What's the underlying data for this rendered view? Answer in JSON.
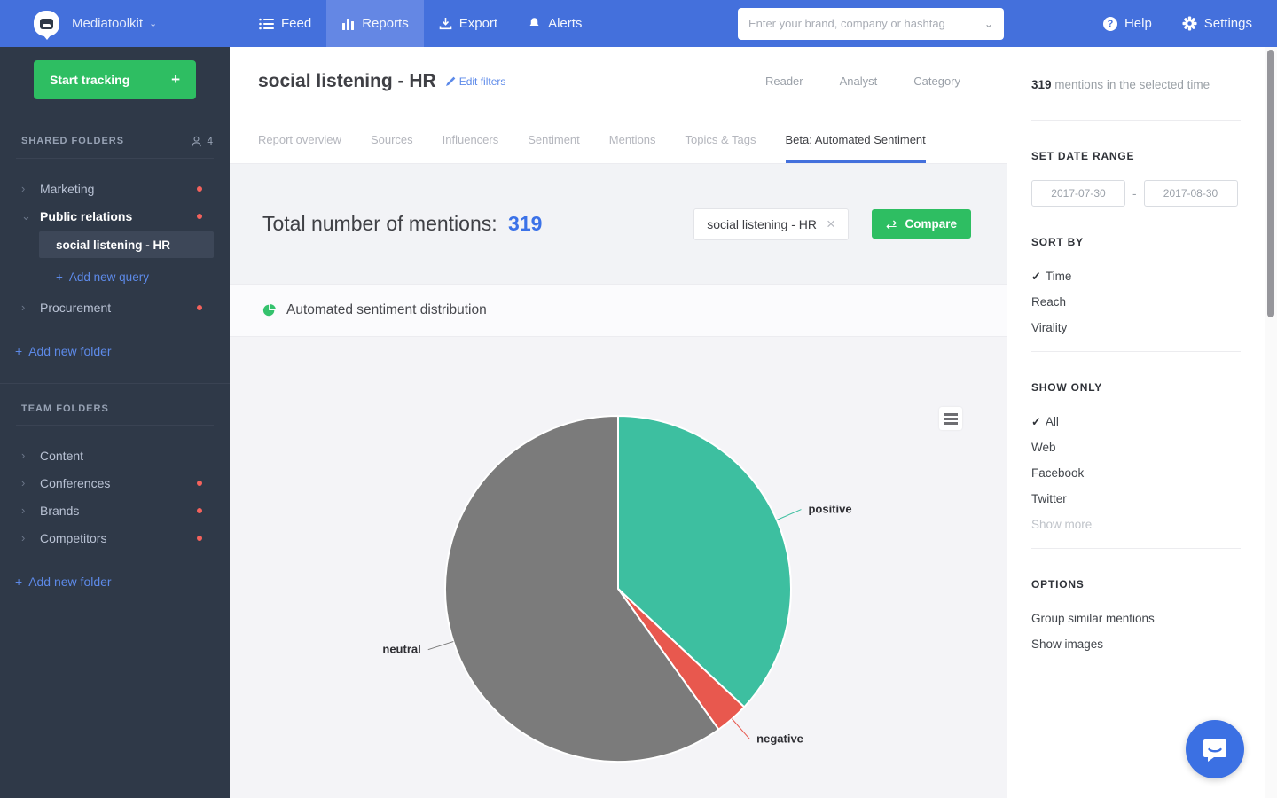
{
  "glyphs": {
    "plus": "+",
    "check": "✓",
    "close": "×",
    "caret_down": "⌄",
    "chevron_right": "›",
    "chevron_down": "⌄",
    "dash": "-",
    "compare_arrows": "⇄",
    "question": "?"
  },
  "colors": {
    "navbar_blue": "#4470dc",
    "active_nav_blue": "#6487e4",
    "sidebar_navy": "#2f3948",
    "accent_green": "#2ebe62",
    "link_blue": "#5d8ae9",
    "count_blue": "#3b72e8",
    "positive_teal": "#3dbfa0",
    "negative_red": "#e8584e",
    "neutral_gray": "#7b7b7b",
    "notification_red": "#f4625c"
  },
  "navbar": {
    "brand": "Mediatoolkit",
    "feed_label": "Feed",
    "reports_label": "Reports",
    "export_label": "Export",
    "alerts_label": "Alerts",
    "search_placeholder": "Enter your brand, company or hashtag",
    "help_label": "Help",
    "settings_label": "Settings"
  },
  "sidebar": {
    "start_tracking_label": "Start tracking",
    "shared_folders_title": "SHARED FOLDERS",
    "member_count": "4",
    "marketing_label": "Marketing",
    "public_relations_label": "Public relations",
    "selected_query_label": "social listening - HR",
    "add_new_query_label": "Add new query",
    "procurement_label": "Procurement",
    "add_new_folder_label": "Add new folder",
    "team_folders_title": "TEAM FOLDERS",
    "content_label": "Content",
    "conferences_label": "Conferences",
    "brands_label": "Brands",
    "competitors_label": "Competitors"
  },
  "main": {
    "title": "social listening - HR",
    "edit_filters_label": "Edit filters",
    "view_modes": {
      "reader": "Reader",
      "analyst": "Analyst",
      "category": "Category"
    },
    "tabs": [
      "Report overview",
      "Sources",
      "Influencers",
      "Sentiment",
      "Mentions",
      "Topics & Tags",
      "Beta: Automated Sentiment"
    ],
    "active_tab": "Beta: Automated Sentiment",
    "total_label": "Total number of mentions:",
    "total_count": "319",
    "query_tag": "social listening - HR",
    "compare_label": "Compare",
    "section_title": "Automated sentiment distribution"
  },
  "right_panel": {
    "mentions_count": "319",
    "mentions_text": "mentions in the selected time",
    "date_range_title": "SET DATE RANGE",
    "date_from": "2017-07-30",
    "date_to": "2017-08-30",
    "sort_by_title": "SORT BY",
    "sort_options": [
      {
        "label": "Time",
        "checked": true
      },
      {
        "label": "Reach",
        "checked": false
      },
      {
        "label": "Virality",
        "checked": false
      }
    ],
    "show_only_title": "SHOW ONLY",
    "show_only_options": [
      {
        "label": "All",
        "checked": true
      },
      {
        "label": "Web",
        "checked": false
      },
      {
        "label": "Facebook",
        "checked": false
      },
      {
        "label": "Twitter",
        "checked": false
      }
    ],
    "show_more_label": "Show more",
    "options_title": "OPTIONS",
    "option_items": [
      "Group similar mentions",
      "Show images"
    ]
  },
  "chart_data": {
    "type": "pie",
    "title": "Automated sentiment distribution",
    "total": 319,
    "start_angle_deg": 0,
    "direction": "clockwise",
    "legend": "none",
    "label_style": "outside-connector",
    "slices": [
      {
        "label": "positive",
        "value": 118,
        "percent": 37,
        "color": "#3dbfa0"
      },
      {
        "label": "negative",
        "value": 10,
        "percent": 3,
        "color": "#e8584e"
      },
      {
        "label": "neutral",
        "value": 191,
        "percent": 60,
        "color": "#7b7b7b"
      }
    ]
  }
}
